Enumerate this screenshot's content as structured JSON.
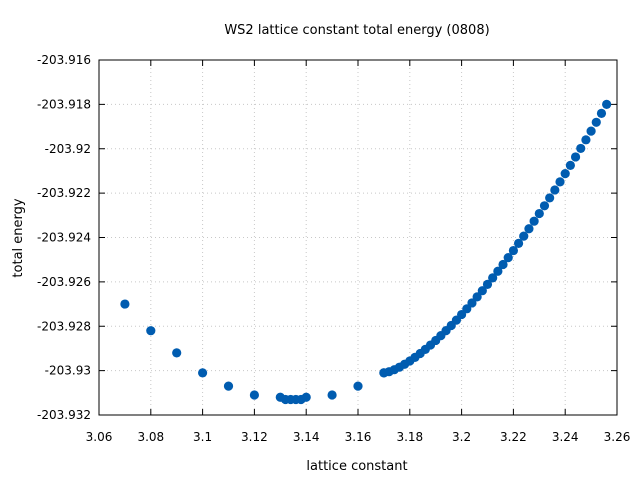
{
  "chart_data": {
    "type": "scatter",
    "title": "WS2 lattice constant total energy (0808)",
    "xlabel": "lattice constant",
    "ylabel": "total energy",
    "xlim": [
      3.06,
      3.26
    ],
    "ylim": [
      -203.932,
      -203.916
    ],
    "x_ticks": [
      "3.06",
      "3.08",
      "3.1",
      "3.12",
      "3.14",
      "3.16",
      "3.18",
      "3.2",
      "3.22",
      "3.24",
      "3.26"
    ],
    "y_ticks": [
      "-203.916",
      "-203.918",
      "-203.92",
      "-203.922",
      "-203.924",
      "-203.926",
      "-203.928",
      "-203.93",
      "-203.932"
    ],
    "grid": true,
    "legend": "none",
    "marker_color": "#005cb0",
    "series": [
      {
        "points": [
          [
            3.07,
            -203.927
          ],
          [
            3.08,
            -203.9282
          ],
          [
            3.09,
            -203.9292
          ],
          [
            3.1,
            -203.9301
          ],
          [
            3.11,
            -203.9307
          ],
          [
            3.12,
            -203.9311
          ],
          [
            3.13,
            -203.9312
          ],
          [
            3.132,
            -203.9313
          ],
          [
            3.134,
            -203.9313
          ],
          [
            3.136,
            -203.9313
          ],
          [
            3.138,
            -203.9313
          ],
          [
            3.14,
            -203.9312
          ],
          [
            3.15,
            -203.9311
          ],
          [
            3.16,
            -203.9307
          ],
          [
            3.17,
            -203.9301
          ]
        ]
      },
      {
        "curve": {
          "x_start": 3.17,
          "x_end": 3.256,
          "step": 0.002,
          "y_start": -203.9301,
          "y_end": -203.918,
          "exponent": 1.45
        }
      }
    ]
  }
}
